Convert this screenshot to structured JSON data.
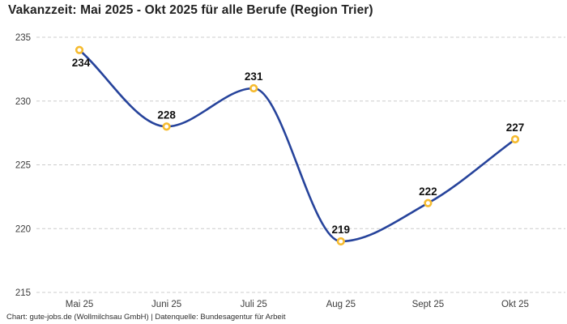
{
  "header": {
    "title": "Vakanzzeit: Mai 2025 - Okt 2025 für alle Berufe (Region Trier)"
  },
  "footer": {
    "attribution": "Chart: gute-jobs.de (Wollmilchsau GmbH) | Datenquelle: Bundesagentur für Arbeit"
  },
  "chart_data": {
    "type": "line",
    "title": "Vakanzzeit: Mai 2025 - Okt 2025 für alle Berufe (Region Trier)",
    "categories": [
      "Mai 25",
      "Juni 25",
      "Juli 25",
      "Aug 25",
      "Sept 25",
      "Okt 25"
    ],
    "values": [
      234,
      228,
      231,
      219,
      222,
      227
    ],
    "data_labels": [
      "234",
      "228",
      "231",
      "219",
      "222",
      "227"
    ],
    "label_positions": [
      "below",
      "above",
      "above",
      "above",
      "above",
      "above"
    ],
    "y_ticks": [
      235,
      230,
      225,
      220,
      215
    ],
    "ylim": [
      215,
      235
    ],
    "xlabel": "",
    "ylabel": "",
    "grid": "dashed-horizontal",
    "legend": "none",
    "curve": "monotone",
    "colors": {
      "line": "#26439b",
      "marker_ring": "#f6bb2f",
      "marker_fill": "#ffffff",
      "gridline": "#cccccc",
      "tick_label": "#3c3c3c",
      "value_label": "#111111"
    }
  }
}
